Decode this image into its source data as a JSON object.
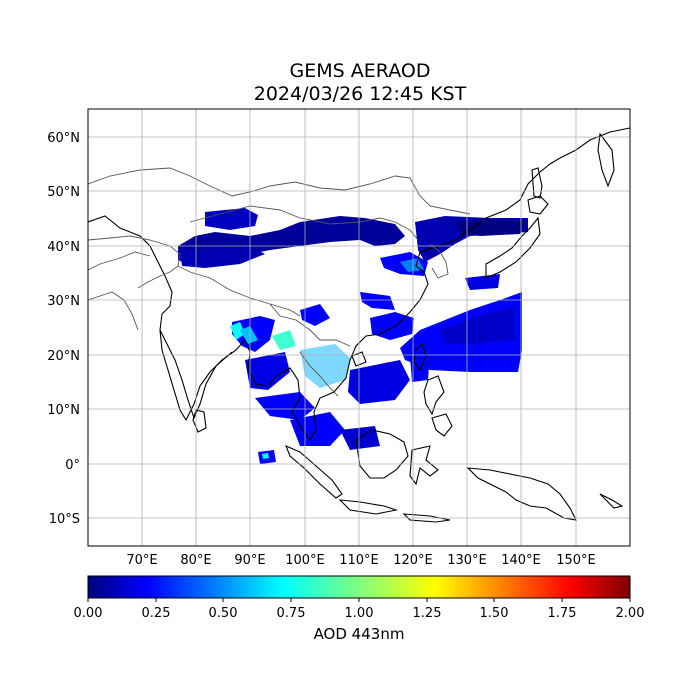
{
  "title": "GEMS AERAOD",
  "subtitle": "2024/03/26 12:45 KST",
  "map": {
    "lon_range": [
      60,
      160
    ],
    "lat_range": [
      -15,
      65
    ],
    "lon_ticks": [
      {
        "value": 70,
        "label": "70°E"
      },
      {
        "value": 80,
        "label": "80°E"
      },
      {
        "value": 90,
        "label": "90°E"
      },
      {
        "value": 100,
        "label": "100°E"
      },
      {
        "value": 110,
        "label": "110°E"
      },
      {
        "value": 120,
        "label": "120°E"
      },
      {
        "value": 130,
        "label": "130°E"
      },
      {
        "value": 140,
        "label": "140°E"
      },
      {
        "value": 150,
        "label": "150°E"
      }
    ],
    "lat_ticks": [
      {
        "value": 60,
        "label": "60°N"
      },
      {
        "value": 50,
        "label": "50°N"
      },
      {
        "value": 40,
        "label": "40°N"
      },
      {
        "value": 30,
        "label": "30°N"
      },
      {
        "value": 20,
        "label": "20°N"
      },
      {
        "value": 10,
        "label": "10°N"
      },
      {
        "value": 0,
        "label": "0°"
      },
      {
        "value": -10,
        "label": "10°S"
      }
    ],
    "grid": true
  },
  "colorbar": {
    "label": "AOD 443nm",
    "range": [
      0,
      2
    ],
    "ticks": [
      "0.00",
      "0.25",
      "0.50",
      "0.75",
      "1.00",
      "1.25",
      "1.50",
      "1.75",
      "2.00"
    ],
    "colors": [
      "#00007f",
      "#0000ff",
      "#007fff",
      "#00ffff",
      "#7fff7f",
      "#ffff00",
      "#ff7f00",
      "#ff0000",
      "#7f0000"
    ]
  }
}
